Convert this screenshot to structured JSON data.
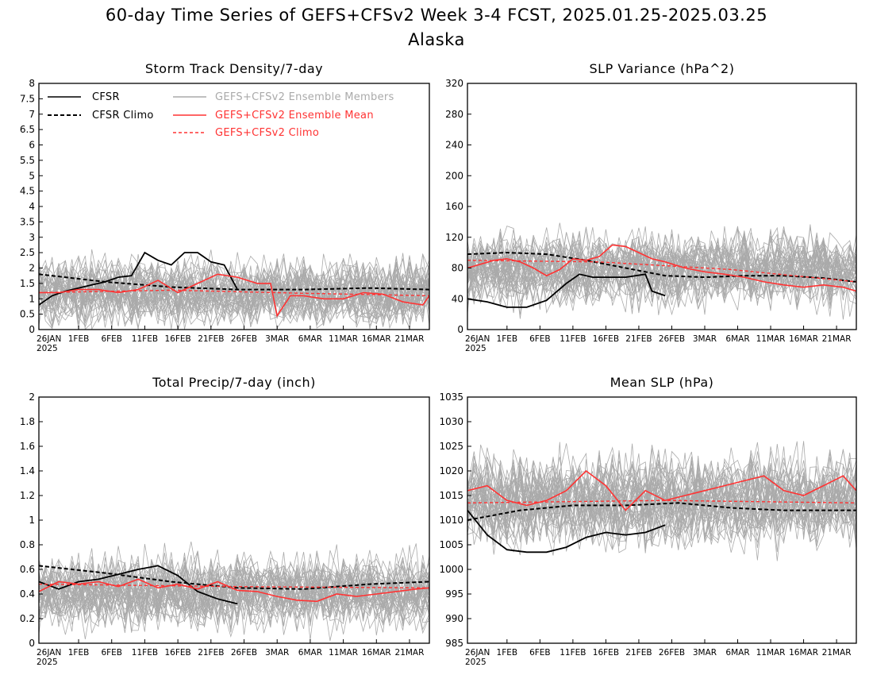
{
  "figure": {
    "title_line1": "60-day Time Series of GEFS+CFSv2 Week 3-4 FCST, 2025.01.25-2025.03.25",
    "title_line2": "Alaska",
    "x_tick_labels": [
      "26JAN",
      "1FEB",
      "6FEB",
      "11FEB",
      "16FEB",
      "21FEB",
      "26FEB",
      "3MAR",
      "6MAR",
      "11MAR",
      "16MAR",
      "21MAR"
    ],
    "x_year_label": "2025"
  },
  "legend": {
    "cfsr": "CFSR",
    "cfsr_climo": "CFSR Climo",
    "members": "GEFS+CFSv2 Ensemble Members",
    "ens_mean": "GEFS+CFSv2 Ensemble Mean",
    "gefs_climo": "GEFS+CFSv2 Climo"
  },
  "colors": {
    "members": "#aaaaaa",
    "ens_mean": "#ff3333",
    "cfsr": "#000000",
    "climo": "#000000",
    "gefs_climo": "#ff3333"
  },
  "chart_data": [
    {
      "type": "line",
      "title": "Storm Track Density/7-day",
      "ylim": [
        0,
        8
      ],
      "yticks": [
        0,
        0.5,
        1,
        1.5,
        2,
        2.5,
        3,
        3.5,
        4,
        4.5,
        5,
        5.5,
        6,
        6.5,
        7,
        7.5,
        8
      ],
      "x_days": [
        0,
        59
      ],
      "ensemble_members": {
        "count": 40,
        "center": 1.2,
        "spread": 0.8
      },
      "series": [
        {
          "name": "CFSR",
          "x": [
            0,
            2,
            4,
            6,
            8,
            10,
            12,
            14,
            16,
            18,
            20,
            22,
            24,
            26,
            28,
            29,
            30
          ],
          "values": [
            0.8,
            1.1,
            1.25,
            1.35,
            1.45,
            1.55,
            1.7,
            1.75,
            2.5,
            2.25,
            2.1,
            2.5,
            2.5,
            2.2,
            2.1,
            1.7,
            1.3
          ]
        },
        {
          "name": "CFSR Climo",
          "x": [
            0,
            10,
            20,
            30,
            40,
            50,
            59
          ],
          "values": [
            1.8,
            1.55,
            1.38,
            1.3,
            1.3,
            1.35,
            1.3
          ]
        },
        {
          "name": "GEFS+CFSv2 Ensemble Mean",
          "x": [
            0,
            3,
            6,
            9,
            12,
            15,
            18,
            21,
            24,
            27,
            30,
            33,
            35,
            36,
            38,
            40,
            43,
            46,
            49,
            52,
            55,
            58,
            59
          ],
          "values": [
            1.2,
            1.2,
            1.3,
            1.3,
            1.2,
            1.3,
            1.6,
            1.2,
            1.5,
            1.8,
            1.7,
            1.5,
            1.5,
            0.45,
            1.1,
            1.1,
            1.0,
            1.0,
            1.2,
            1.15,
            0.9,
            0.8,
            1.1
          ]
        },
        {
          "name": "GEFS+CFSv2 Climo",
          "x": [
            0,
            20,
            40,
            59
          ],
          "values": [
            1.2,
            1.28,
            1.18,
            1.1
          ]
        }
      ]
    },
    {
      "type": "line",
      "title": "SLP Variance (hPa^2)",
      "ylim": [
        0,
        320
      ],
      "yticks": [
        0,
        40,
        80,
        120,
        160,
        200,
        240,
        280,
        320
      ],
      "x_days": [
        0,
        59
      ],
      "ensemble_members": {
        "count": 40,
        "center": 78,
        "spread": 35
      },
      "series": [
        {
          "name": "CFSR",
          "x": [
            0,
            3,
            6,
            9,
            12,
            15,
            17,
            19,
            21,
            24,
            27,
            28,
            30
          ],
          "values": [
            40,
            36,
            29,
            29,
            38,
            60,
            72,
            68,
            68,
            68,
            72,
            50,
            44
          ]
        },
        {
          "name": "CFSR Climo",
          "x": [
            0,
            6,
            12,
            18,
            24,
            30,
            36,
            42,
            48,
            54,
            59
          ],
          "values": [
            98,
            100,
            98,
            90,
            80,
            70,
            68,
            70,
            70,
            67,
            62
          ]
        },
        {
          "name": "GEFS+CFSv2 Ensemble Mean",
          "x": [
            0,
            2,
            4,
            6,
            8,
            10,
            12,
            14,
            16,
            18,
            20,
            22,
            24,
            26,
            28,
            30,
            33,
            36,
            39,
            42,
            45,
            48,
            51,
            54,
            57,
            59
          ],
          "values": [
            80,
            85,
            90,
            92,
            88,
            80,
            70,
            78,
            92,
            90,
            95,
            110,
            108,
            100,
            92,
            88,
            80,
            75,
            72,
            68,
            62,
            58,
            55,
            58,
            55,
            50
          ]
        },
        {
          "name": "GEFS+CFSv2 Climo",
          "x": [
            0,
            20,
            40,
            59
          ],
          "values": [
            90,
            88,
            78,
            62
          ]
        }
      ]
    },
    {
      "type": "line",
      "title": "Total Precip/7-day (inch)",
      "ylim": [
        0,
        2
      ],
      "yticks": [
        0,
        0.2,
        0.4,
        0.6,
        0.8,
        1,
        1.2,
        1.4,
        1.6,
        1.8,
        2
      ],
      "x_days": [
        0,
        59
      ],
      "ensemble_members": {
        "count": 40,
        "center": 0.42,
        "spread": 0.22
      },
      "series": [
        {
          "name": "CFSR",
          "x": [
            0,
            3,
            6,
            9,
            12,
            15,
            18,
            21,
            24,
            27,
            30
          ],
          "values": [
            0.5,
            0.44,
            0.5,
            0.52,
            0.56,
            0.6,
            0.63,
            0.55,
            0.42,
            0.36,
            0.32
          ]
        },
        {
          "name": "CFSR Climo",
          "x": [
            0,
            10,
            20,
            30,
            40,
            50,
            59
          ],
          "values": [
            0.63,
            0.57,
            0.5,
            0.45,
            0.44,
            0.48,
            0.5
          ]
        },
        {
          "name": "GEFS+CFSv2 Ensemble Mean",
          "x": [
            0,
            3,
            6,
            9,
            12,
            15,
            18,
            21,
            24,
            27,
            30,
            33,
            36,
            39,
            42,
            45,
            48,
            51,
            54,
            57,
            59
          ],
          "values": [
            0.42,
            0.5,
            0.48,
            0.5,
            0.46,
            0.52,
            0.45,
            0.48,
            0.44,
            0.5,
            0.43,
            0.42,
            0.38,
            0.35,
            0.34,
            0.4,
            0.38,
            0.4,
            0.42,
            0.44,
            0.45
          ]
        },
        {
          "name": "GEFS+CFSv2 Climo",
          "x": [
            0,
            30,
            59
          ],
          "values": [
            0.48,
            0.46,
            0.45
          ]
        }
      ]
    },
    {
      "type": "line",
      "title": "Mean SLP (hPa)",
      "ylim": [
        985,
        1035
      ],
      "yticks": [
        985,
        990,
        995,
        1000,
        1005,
        1010,
        1015,
        1020,
        1025,
        1030,
        1035
      ],
      "x_days": [
        0,
        59
      ],
      "ensemble_members": {
        "count": 40,
        "center": 1014,
        "spread": 7
      },
      "series": [
        {
          "name": "CFSR",
          "x": [
            0,
            3,
            6,
            9,
            12,
            15,
            18,
            21,
            24,
            27,
            30
          ],
          "values": [
            1012,
            1007,
            1004,
            1003.5,
            1003.5,
            1004.5,
            1006.5,
            1007.5,
            1007,
            1007.5,
            1009
          ]
        },
        {
          "name": "CFSR Climo",
          "x": [
            0,
            8,
            16,
            24,
            32,
            40,
            48,
            59
          ],
          "values": [
            1010,
            1012,
            1013,
            1013,
            1013.5,
            1012.5,
            1012,
            1012
          ]
        },
        {
          "name": "GEFS+CFSv2 Ensemble Mean",
          "x": [
            0,
            3,
            6,
            9,
            12,
            15,
            18,
            21,
            24,
            27,
            30,
            33,
            36,
            39,
            42,
            45,
            48,
            51,
            54,
            57,
            59
          ],
          "values": [
            1016,
            1017,
            1014,
            1013,
            1014,
            1016,
            1020,
            1017,
            1012,
            1016,
            1014,
            1015,
            1016,
            1017,
            1018,
            1019,
            1016,
            1015,
            1017,
            1019,
            1016
          ]
        },
        {
          "name": "GEFS+CFSv2 Climo",
          "x": [
            0,
            30,
            59
          ],
          "values": [
            1013.5,
            1014,
            1013.5
          ]
        }
      ]
    }
  ]
}
